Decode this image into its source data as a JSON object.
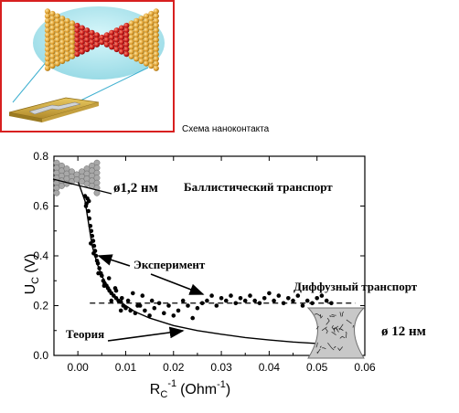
{
  "inset": {
    "caption": "Схема наноконтакта"
  },
  "colors": {
    "frame": "#d82020",
    "data": "#000000",
    "atoms_gold": "#e0a030",
    "atoms_red": "#c81818",
    "neck": "#b0b0b0"
  },
  "chart_data": {
    "type": "scatter",
    "title": "",
    "xlabel_main": "R",
    "xlabel_sub": "C",
    "xlabel_sup": "-1",
    "xlabel_unit": "(Ohm",
    "xlabel_unit_sup": "-1",
    "xlabel_close": ")",
    "ylabel_main": "U",
    "ylabel_sub": "C",
    "ylabel_unit": "(V)",
    "xlim": [
      -0.005,
      0.06
    ],
    "ylim": [
      0.0,
      0.8
    ],
    "xticks": [
      "0.00",
      "0.01",
      "0.02",
      "0.03",
      "0.04",
      "0.05",
      "0.06"
    ],
    "yticks": [
      "0.0",
      "0.2",
      "0.4",
      "0.6",
      "0.8"
    ],
    "annotations": {
      "ballistic_diameter": "ø1,2 нм",
      "ballistic_label": "Баллистический транспорт",
      "experiment_label": "Эксперимент",
      "diffusive_label": "Диффузный транспорт",
      "diffusive_diameter": "ø 12 нм",
      "theory_label": "Теория"
    },
    "dashed_level": 0.21,
    "experiment_points": [
      [
        0.0015,
        0.64
      ],
      [
        0.0018,
        0.61
      ],
      [
        0.002,
        0.63
      ],
      [
        0.0022,
        0.58
      ],
      [
        0.0024,
        0.55
      ],
      [
        0.0026,
        0.52
      ],
      [
        0.0028,
        0.5
      ],
      [
        0.003,
        0.48
      ],
      [
        0.0032,
        0.46
      ],
      [
        0.0034,
        0.44
      ],
      [
        0.0036,
        0.42
      ],
      [
        0.0038,
        0.4
      ],
      [
        0.004,
        0.38
      ],
      [
        0.0042,
        0.37
      ],
      [
        0.0045,
        0.35
      ],
      [
        0.0048,
        0.33
      ],
      [
        0.005,
        0.32
      ],
      [
        0.0053,
        0.3
      ],
      [
        0.0056,
        0.29
      ],
      [
        0.006,
        0.28
      ],
      [
        0.0063,
        0.27
      ],
      [
        0.0066,
        0.26
      ],
      [
        0.007,
        0.25
      ],
      [
        0.0075,
        0.24
      ],
      [
        0.008,
        0.23
      ],
      [
        0.0085,
        0.22
      ],
      [
        0.009,
        0.215
      ],
      [
        0.0095,
        0.2
      ],
      [
        0.01,
        0.19
      ],
      [
        0.011,
        0.18
      ],
      [
        0.012,
        0.17
      ],
      [
        0.013,
        0.2
      ],
      [
        0.014,
        0.18
      ],
      [
        0.015,
        0.16
      ],
      [
        0.016,
        0.19
      ],
      [
        0.017,
        0.21
      ],
      [
        0.018,
        0.17
      ],
      [
        0.019,
        0.2
      ],
      [
        0.02,
        0.16
      ],
      [
        0.021,
        0.18
      ],
      [
        0.022,
        0.22
      ],
      [
        0.023,
        0.2
      ],
      [
        0.024,
        0.15
      ],
      [
        0.025,
        0.19
      ],
      [
        0.026,
        0.21
      ],
      [
        0.027,
        0.22
      ],
      [
        0.028,
        0.24
      ],
      [
        0.029,
        0.2
      ],
      [
        0.03,
        0.23
      ],
      [
        0.031,
        0.22
      ],
      [
        0.032,
        0.24
      ],
      [
        0.033,
        0.21
      ],
      [
        0.034,
        0.23
      ],
      [
        0.035,
        0.22
      ],
      [
        0.036,
        0.24
      ],
      [
        0.037,
        0.22
      ],
      [
        0.038,
        0.21
      ],
      [
        0.039,
        0.23
      ],
      [
        0.04,
        0.25
      ],
      [
        0.041,
        0.22
      ],
      [
        0.042,
        0.24
      ],
      [
        0.043,
        0.21
      ],
      [
        0.044,
        0.23
      ],
      [
        0.045,
        0.22
      ],
      [
        0.046,
        0.24
      ],
      [
        0.047,
        0.2
      ],
      [
        0.048,
        0.22
      ],
      [
        0.049,
        0.21
      ],
      [
        0.05,
        0.23
      ],
      [
        0.051,
        0.24
      ],
      [
        0.052,
        0.22
      ],
      [
        0.053,
        0.21
      ],
      [
        0.054,
        0.17
      ],
      [
        0.0105,
        0.22
      ],
      [
        0.0115,
        0.25
      ],
      [
        0.0125,
        0.2
      ],
      [
        0.0135,
        0.24
      ],
      [
        0.007,
        0.22
      ],
      [
        0.008,
        0.26
      ],
      [
        0.009,
        0.18
      ],
      [
        0.0017,
        0.6
      ],
      [
        0.0023,
        0.62
      ],
      [
        0.0027,
        0.45
      ],
      [
        0.0033,
        0.41
      ],
      [
        0.0043,
        0.33
      ],
      [
        0.0055,
        0.28
      ],
      [
        0.0065,
        0.31
      ],
      [
        0.0078,
        0.27
      ],
      [
        0.0092,
        0.23
      ],
      [
        0.0155,
        0.22
      ]
    ],
    "theory_curve": [
      [
        0.0,
        0.7
      ],
      [
        0.0015,
        0.62
      ],
      [
        0.002,
        0.56
      ],
      [
        0.003,
        0.44
      ],
      [
        0.004,
        0.37
      ],
      [
        0.005,
        0.32
      ],
      [
        0.006,
        0.285
      ],
      [
        0.007,
        0.255
      ],
      [
        0.008,
        0.23
      ],
      [
        0.01,
        0.2
      ],
      [
        0.012,
        0.175
      ],
      [
        0.015,
        0.15
      ],
      [
        0.02,
        0.12
      ],
      [
        0.025,
        0.1
      ],
      [
        0.03,
        0.085
      ],
      [
        0.035,
        0.072
      ],
      [
        0.04,
        0.062
      ],
      [
        0.045,
        0.054
      ],
      [
        0.05,
        0.048
      ],
      [
        0.055,
        0.043
      ],
      [
        0.058,
        0.04
      ]
    ]
  }
}
